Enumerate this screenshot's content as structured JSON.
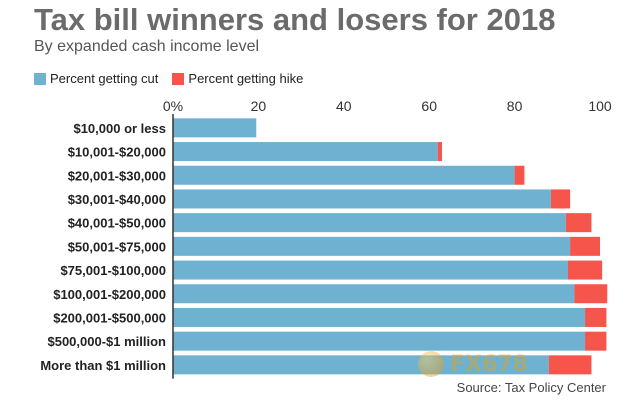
{
  "title": "Tax bill winners and losers for 2018",
  "subtitle": "By expanded cash income level",
  "source": "Source: Tax Policy Center",
  "watermark": "FX678",
  "colors": {
    "cut": "#6fb1d0",
    "hike": "#f5554a",
    "axis": "#333333"
  },
  "chart_data": {
    "type": "bar",
    "orientation": "horizontal",
    "stacked": true,
    "categories": [
      "$10,000 or less",
      "$10,001-$20,000",
      "$20,001-$30,000",
      "$30,001-$40,000",
      "$40,001-$50,000",
      "$50,001-$75,000",
      "$75,001-$100,000",
      "$100,001-$200,000",
      "$200,001-$500,000",
      "$500,000-$1 million",
      "More than $1 million"
    ],
    "series": [
      {
        "name": "Percent getting cut",
        "values": [
          19.5,
          62,
          80,
          88.5,
          92,
          93,
          92.5,
          94,
          96.5,
          96.5,
          88
        ]
      },
      {
        "name": "Percent getting hike",
        "values": [
          0,
          1,
          2.3,
          4.5,
          6,
          7,
          8,
          7.7,
          5,
          5,
          10
        ]
      }
    ],
    "x_ticks": [
      "0%",
      "20",
      "40",
      "60",
      "80",
      "100"
    ],
    "xlim": [
      0,
      100
    ],
    "legend_position": "top-left"
  }
}
